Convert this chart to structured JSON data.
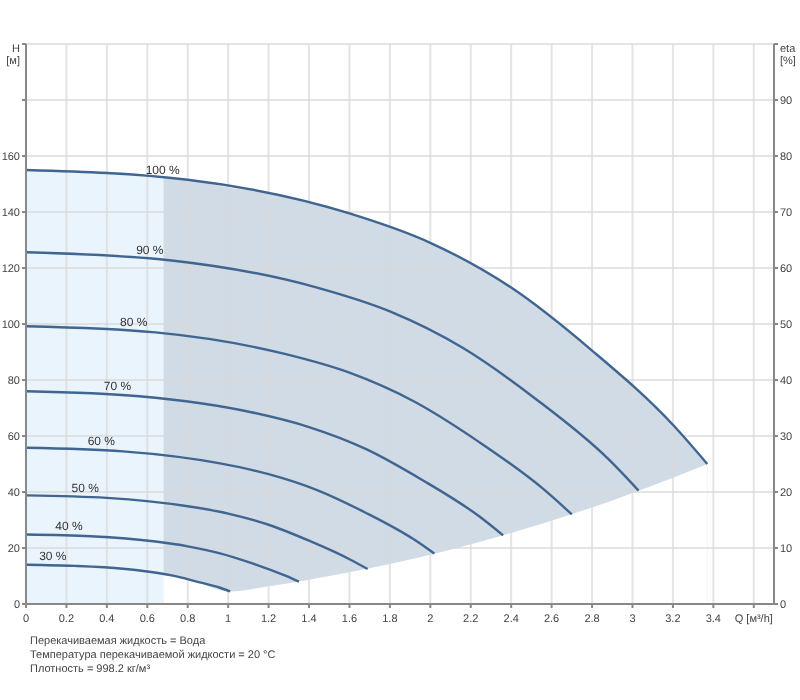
{
  "chart_data": {
    "type": "line",
    "xlabel": "Q [м³/h]",
    "ylabel": "H [м]",
    "y2label": "eta [%]",
    "xlim": [
      0,
      3.7
    ],
    "xticks": [
      0,
      0.2,
      0.4,
      0.6,
      0.8,
      1.0,
      1.2,
      1.4,
      1.6,
      1.8,
      2.0,
      2.2,
      2.4,
      2.6,
      2.8,
      3.0,
      3.2,
      3.4,
      {
        "value": 3.6,
        "label": null
      }
    ],
    "ylim": [
      0,
      200
    ],
    "yticks": [
      0,
      20,
      40,
      60,
      80,
      100,
      120,
      140,
      160,
      {
        "value": 180,
        "label": null
      },
      {
        "value": 200,
        "label": null
      }
    ],
    "y2lim": [
      0,
      100
    ],
    "y2ticks": [
      0,
      10,
      20,
      30,
      40,
      50,
      60,
      70,
      80,
      90,
      {
        "value": 100,
        "label": null
      }
    ],
    "grid": true,
    "legend": false,
    "marker": "none",
    "line_style": "solid",
    "series": [
      {
        "type": "area",
        "color": "#eaf4fd",
        "x": [
          0,
          0.4,
          0.68
        ],
        "values": [
          155,
          154.5,
          152.8
        ]
      },
      {
        "type": "area",
        "color": "#d0dbe6",
        "x": [
          0.68,
          0.8,
          1.01,
          1.2,
          1.6,
          2.0,
          2.4,
          2.8,
          3.2,
          3.37
        ],
        "values": [
          152.8,
          151.5,
          148.7,
          147,
          139.5,
          129,
          113,
          90.5,
          64,
          50
        ]
      },
      {
        "type": "area",
        "color": "#ffffff",
        "x": [
          0.68,
          0.8,
          1.01,
          1.2,
          1.6,
          2.0,
          2.4,
          2.8,
          3.2,
          3.37
        ],
        "values": [
          10.7,
          8.8,
          4.5,
          6.3,
          11.3,
          17.6,
          25.4,
          34.5,
          45.1,
          50
        ]
      },
      {
        "name": "100 %",
        "color": "#3f6590",
        "x": [
          0,
          0.8,
          1.6,
          2.0,
          2.4,
          2.8,
          3.2,
          3.37
        ],
        "values": [
          155,
          151.5,
          139.5,
          129,
          113,
          90.5,
          64,
          50
        ]
      },
      {
        "name": "90 %",
        "color": "#3f6590",
        "x": [
          0,
          0.72,
          1.44,
          1.8,
          2.16,
          2.52,
          2.88,
          3.03
        ],
        "values": [
          125.6,
          122.7,
          113,
          104.5,
          91.5,
          73.3,
          51.8,
          40.5
        ]
      },
      {
        "name": "80 %",
        "color": "#3f6590",
        "x": [
          0,
          0.64,
          1.28,
          1.6,
          1.92,
          2.24,
          2.56,
          2.7
        ],
        "values": [
          99.2,
          97,
          89.3,
          82.6,
          72.3,
          57.9,
          41,
          32
        ]
      },
      {
        "name": "70 %",
        "color": "#3f6590",
        "x": [
          0,
          0.56,
          1.12,
          1.4,
          1.68,
          1.96,
          2.24,
          2.36
        ],
        "values": [
          76,
          74.2,
          68.4,
          63.2,
          55.4,
          44.3,
          31.4,
          24.5
        ]
      },
      {
        "name": "60 %",
        "color": "#3f6590",
        "x": [
          0,
          0.48,
          0.96,
          1.2,
          1.44,
          1.68,
          1.92,
          2.02
        ],
        "values": [
          55.8,
          54.5,
          50.2,
          46.4,
          40.7,
          32.6,
          23,
          18
        ]
      },
      {
        "name": "50 %",
        "color": "#3f6590",
        "x": [
          0,
          0.4,
          0.8,
          1.0,
          1.2,
          1.4,
          1.6,
          1.69
        ],
        "values": [
          38.8,
          37.9,
          34.9,
          32.3,
          28.3,
          22.6,
          16,
          12.5
        ]
      },
      {
        "name": "40 %",
        "color": "#3f6590",
        "x": [
          0,
          0.32,
          0.64,
          0.8,
          0.96,
          1.12,
          1.28,
          1.35
        ],
        "values": [
          24.8,
          24.2,
          22.3,
          20.6,
          18.1,
          14.5,
          10.2,
          8
        ]
      },
      {
        "name": "30 %",
        "color": "#3f6590",
        "x": [
          0,
          0.24,
          0.48,
          0.6,
          0.72,
          0.84,
          0.96,
          1.01
        ],
        "values": [
          14,
          13.6,
          12.6,
          11.6,
          10.2,
          8.1,
          5.8,
          4.5
        ]
      }
    ],
    "annotations": [
      "Перекачиваемая жидкость = Вода",
      "Температура перекачиваемой жидкости = 20 °C",
      "Плотность = 998.2 кг/м³"
    ]
  }
}
